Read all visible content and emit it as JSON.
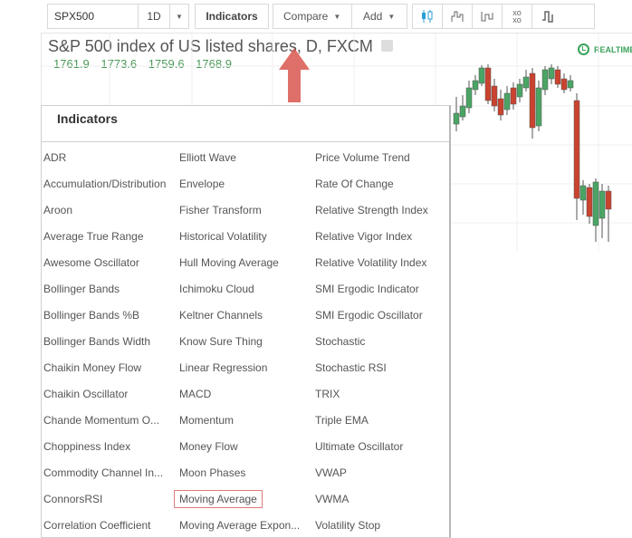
{
  "toolbar": {
    "symbol": "SPX500",
    "interval": "1D",
    "indicators_label": "Indicators",
    "compare_label": "Compare",
    "add_label": "Add",
    "chart_types": [
      "candles-icon",
      "bars-icon",
      "line-icon",
      "point-figure-icon",
      "kagi-icon"
    ]
  },
  "chart": {
    "title": "S&P 500 index of US listed shares, D, FXCM",
    "ohlc": [
      "1761.9",
      "1773.6",
      "1759.6",
      "1768.9"
    ],
    "realtime_label": "REALTIME",
    "colors": {
      "up": "#4aa564",
      "down": "#c9432f",
      "ohlc_text": "#4a9a58",
      "arrow": "#d9574f"
    }
  },
  "indicators": {
    "title": "Indicators",
    "selected": "Moving Average",
    "columns": [
      [
        "ADR",
        "Accumulation/Distribution",
        "Aroon",
        "Average True Range",
        "Awesome Oscillator",
        "Bollinger Bands",
        "Bollinger Bands %B",
        "Bollinger Bands Width",
        "Chaikin Money Flow",
        "Chaikin Oscillator",
        "Chande Momentum O...",
        "Choppiness Index",
        "Commodity Channel In...",
        "ConnorsRSI",
        "Correlation Coefficient"
      ],
      [
        "Elliott Wave",
        "Envelope",
        "Fisher Transform",
        "Historical Volatility",
        "Hull Moving Average",
        "Ichimoku Cloud",
        "Keltner Channels",
        "Know Sure Thing",
        "Linear Regression",
        "MACD",
        "Momentum",
        "Money Flow",
        "Moon Phases",
        "Moving Average",
        "Moving Average Expon..."
      ],
      [
        "Price Volume Trend",
        "Rate Of Change",
        "Relative Strength Index",
        "Relative Vigor Index",
        "Relative Volatility Index",
        "SMI Ergodic Indicator",
        "SMI Ergodic Oscillator",
        "Stochastic",
        "Stochastic RSI",
        "TRIX",
        "Triple EMA",
        "Ultimate Oscillator",
        "VWAP",
        "VWMA",
        "Volatility Stop"
      ]
    ]
  }
}
